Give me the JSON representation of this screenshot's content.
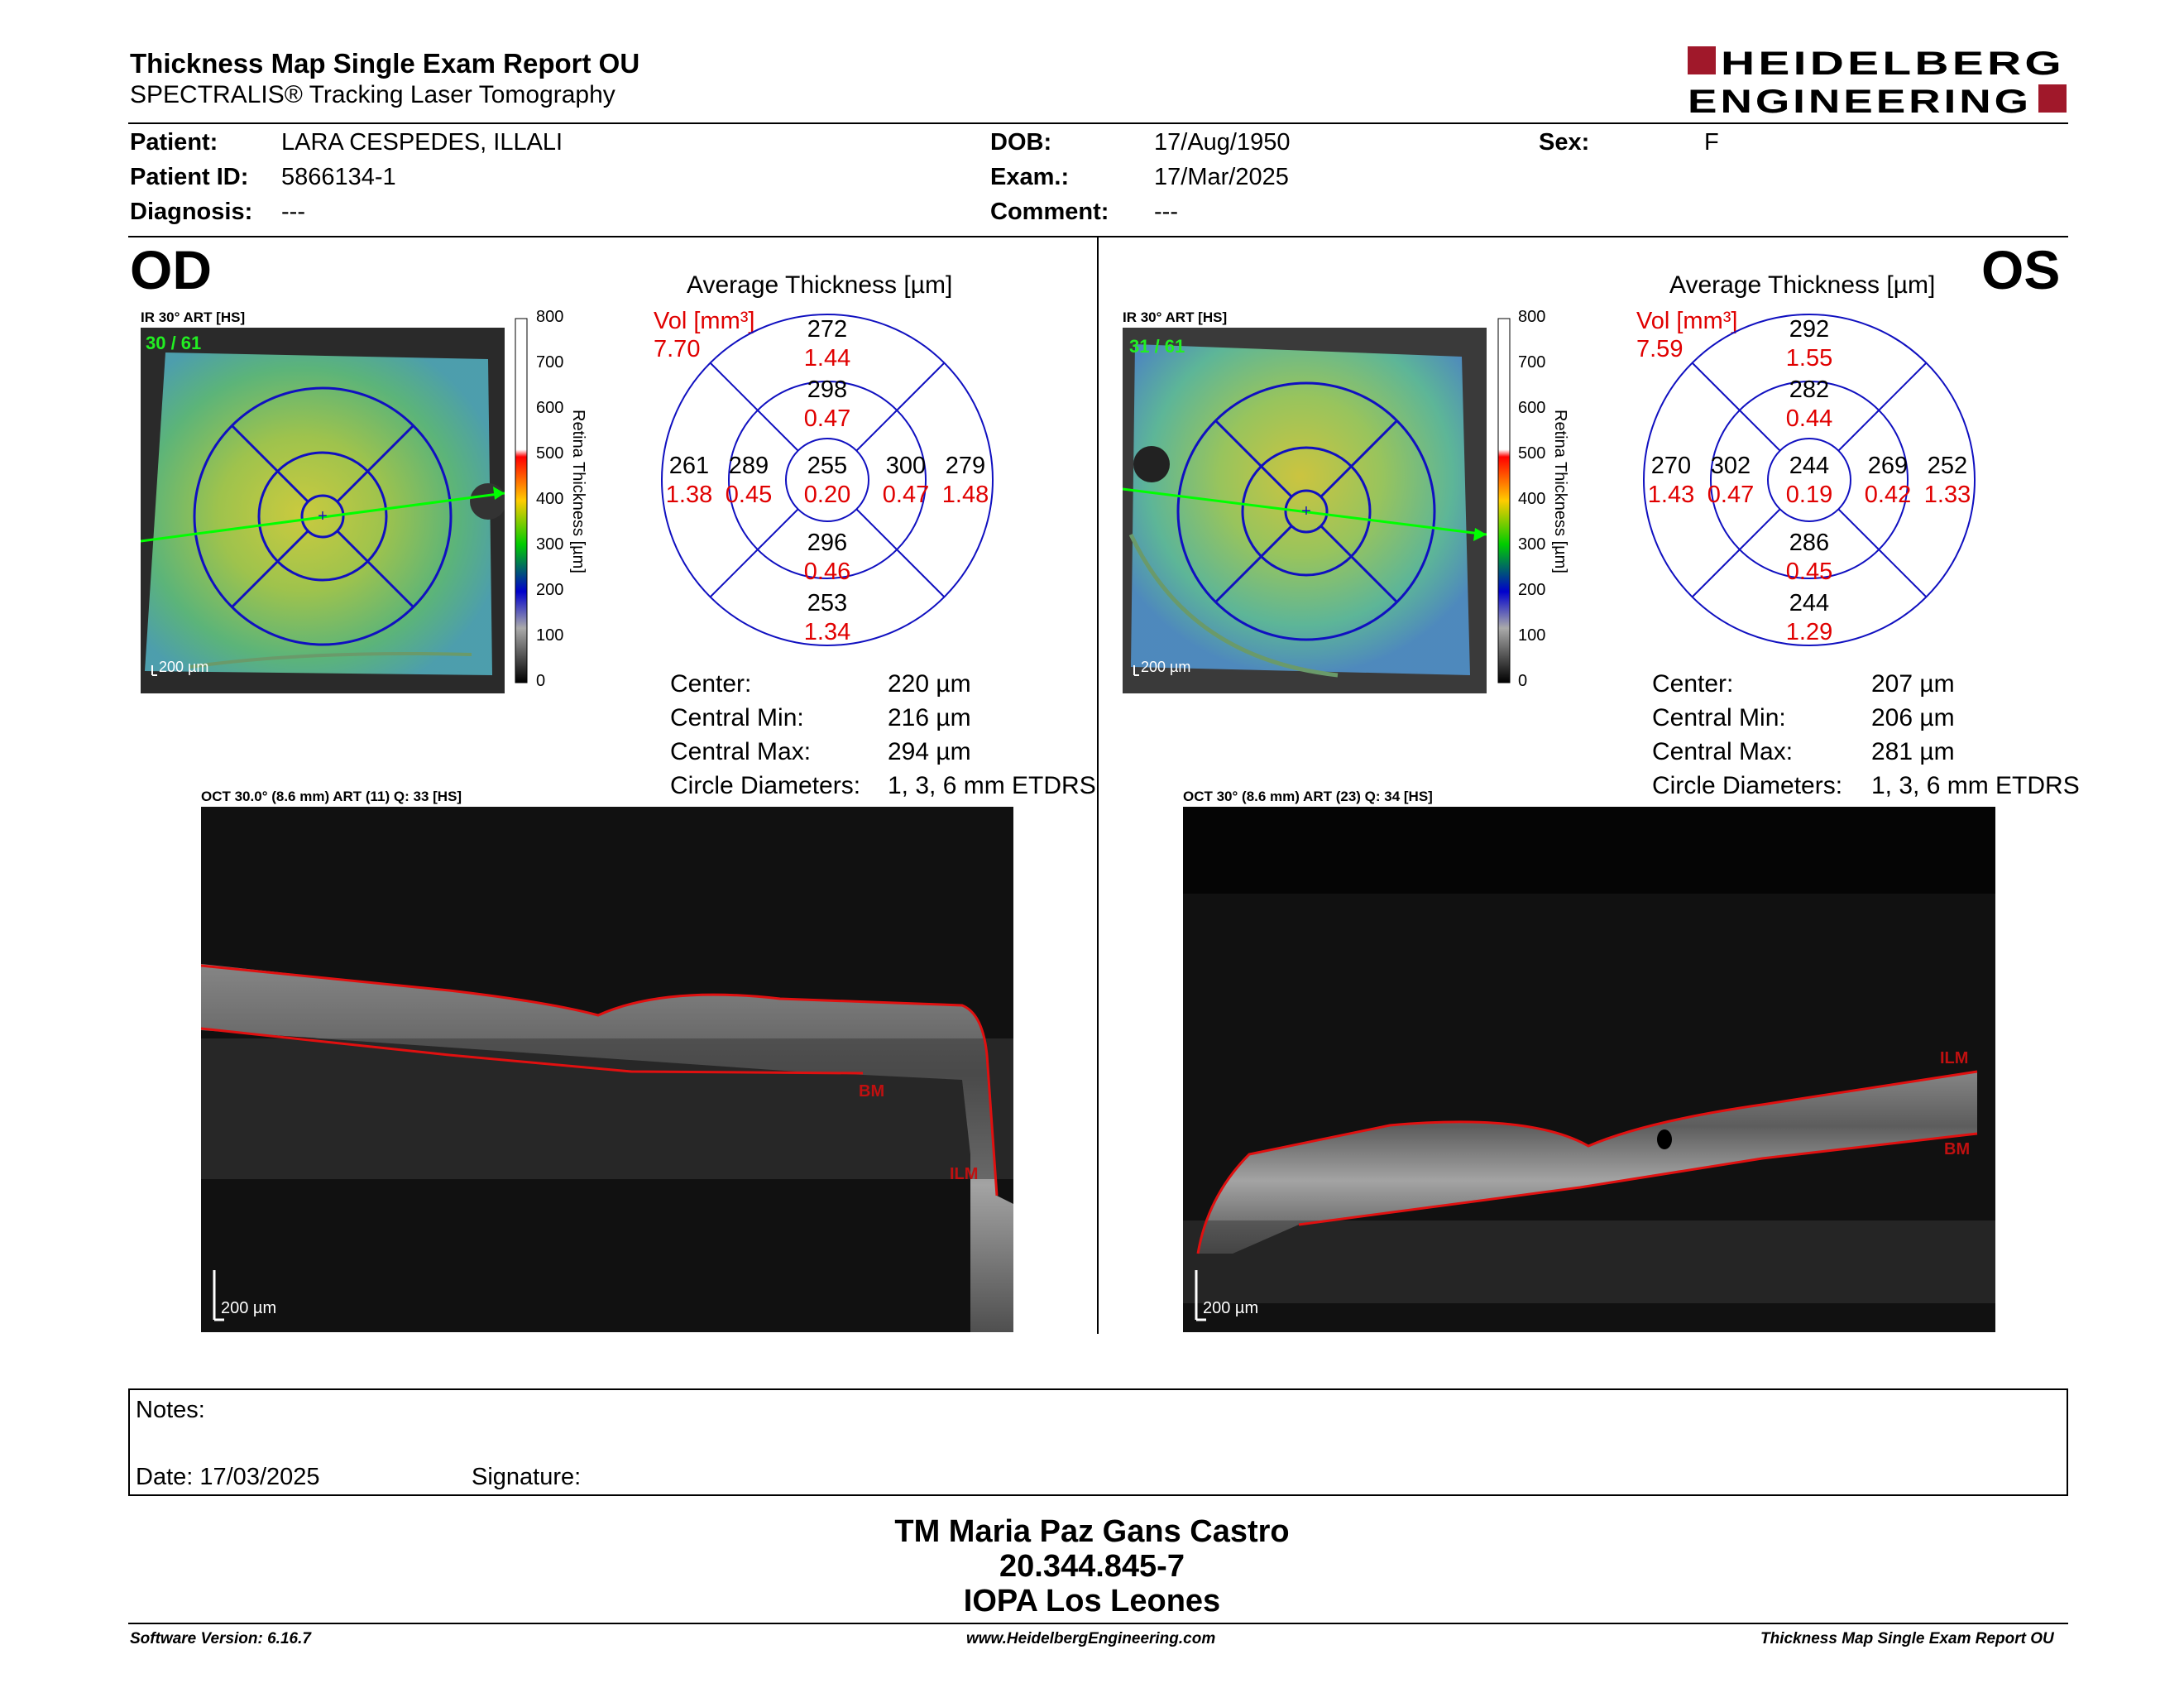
{
  "header": {
    "title": "Thickness Map Single Exam Report OU",
    "subtitle": "SPECTRALIS® Tracking Laser Tomography",
    "logo_line1": "HEIDELBERG",
    "logo_line2": "ENGINEERING"
  },
  "patient": {
    "patient_label": "Patient:",
    "patient_value": "LARA CESPEDES, ILLALI",
    "id_label": "Patient ID:",
    "id_value": "5866134-1",
    "diagnosis_label": "Diagnosis:",
    "diagnosis_value": "---",
    "dob_label": "DOB:",
    "dob_value": "17/Aug/1950",
    "exam_label": "Exam.:",
    "exam_value": "17/Mar/2025",
    "comment_label": "Comment:",
    "comment_value": "---",
    "sex_label": "Sex:",
    "sex_value": "F"
  },
  "od": {
    "eye": "OD",
    "ir_title": "IR 30° ART [HS]",
    "frame": "30 / 61",
    "scale_bar": "200 µm",
    "avg_title": "Average Thickness [µm]",
    "vol_label": "Vol [mm³]",
    "vol_total": "7.70",
    "etdrs": {
      "center": [
        "255",
        "0.20"
      ],
      "inner_sup": [
        "298",
        "0.47"
      ],
      "inner_inf": [
        "296",
        "0.46"
      ],
      "inner_left": [
        "289",
        "0.45"
      ],
      "inner_right": [
        "300",
        "0.47"
      ],
      "outer_sup": [
        "272",
        "1.44"
      ],
      "outer_inf": [
        "253",
        "1.34"
      ],
      "outer_left": [
        "261",
        "1.38"
      ],
      "outer_right": [
        "279",
        "1.48"
      ]
    },
    "stats": {
      "center_label": "Center:",
      "center_value": "220 µm",
      "min_label": "Central Min:",
      "min_value": "216 µm",
      "max_label": "Central Max:",
      "max_value": "294 µm",
      "circle_label": "Circle Diameters:",
      "circle_value": "1, 3, 6 mm ETDRS"
    },
    "oct_title": "OCT 30.0° (8.6 mm) ART (11) Q: 33 [HS]",
    "oct_scale": "200 µm",
    "oct_bm": "BM",
    "oct_ilm": "ILM"
  },
  "os": {
    "eye": "OS",
    "ir_title": "IR 30° ART [HS]",
    "frame": "31 / 61",
    "scale_bar": "200 µm",
    "avg_title": "Average Thickness [µm]",
    "vol_label": "Vol [mm³]",
    "vol_total": "7.59",
    "etdrs": {
      "center": [
        "244",
        "0.19"
      ],
      "inner_sup": [
        "282",
        "0.44"
      ],
      "inner_inf": [
        "286",
        "0.45"
      ],
      "inner_left": [
        "302",
        "0.47"
      ],
      "inner_right": [
        "269",
        "0.42"
      ],
      "outer_sup": [
        "292",
        "1.55"
      ],
      "outer_inf": [
        "244",
        "1.29"
      ],
      "outer_left": [
        "270",
        "1.43"
      ],
      "outer_right": [
        "252",
        "1.33"
      ]
    },
    "stats": {
      "center_label": "Center:",
      "center_value": "207 µm",
      "min_label": "Central Min:",
      "min_value": "206 µm",
      "max_label": "Central Max:",
      "max_value": "281 µm",
      "circle_label": "Circle Diameters:",
      "circle_value": "1, 3, 6 mm ETDRS"
    },
    "oct_title": "OCT 30° (8.6 mm) ART (23) Q: 34 [HS]",
    "oct_scale": "200 µm",
    "oct_bm": "BM",
    "oct_ilm": "ILM"
  },
  "color_scale": {
    "ticks": [
      "800",
      "700",
      "600",
      "500",
      "400",
      "300",
      "200",
      "100",
      "0"
    ],
    "label": "Retina Thickness [µm]"
  },
  "notes": {
    "notes_label": "Notes:",
    "date_label": "Date: 17/03/2025",
    "signature_label": "Signature:"
  },
  "signature_block": {
    "line1": "TM Maria Paz Gans Castro",
    "line2": "20.344.845-7",
    "line3": "IOPA Los Leones"
  },
  "footer": {
    "software": "Software Version: 6.16.7",
    "website": "www.HeidelbergEngineering.com",
    "report": "Thickness Map Single Exam Report OU"
  },
  "colors": {
    "accent_red": "#e00000",
    "etdrs_blue": "#1010c0",
    "logo_red": "#a0182a",
    "oct_line_red": "#e01010",
    "scan_line_green": "#00ff00"
  }
}
